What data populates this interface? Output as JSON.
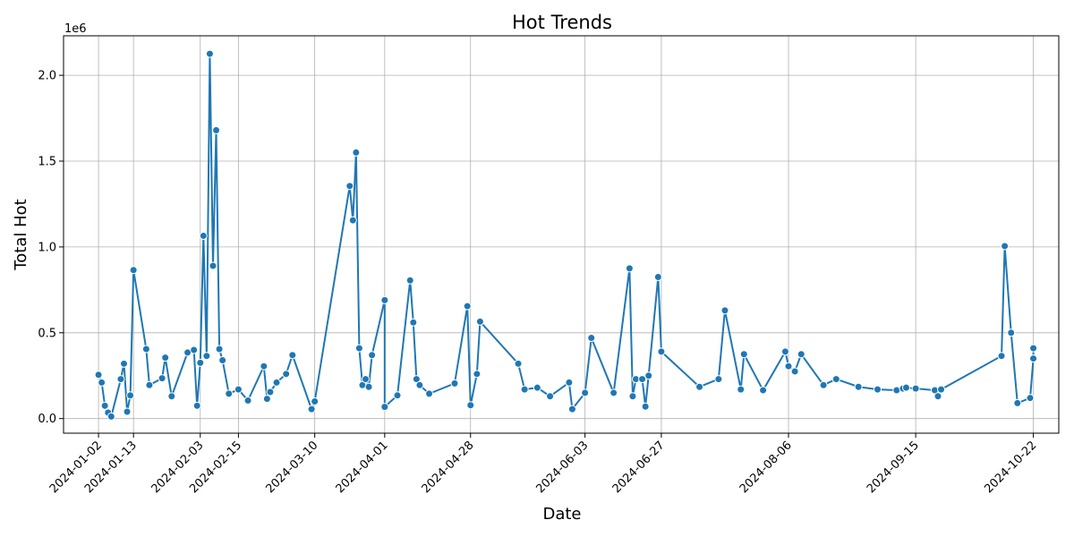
{
  "chart_data": {
    "type": "line",
    "title": "Hot Trends",
    "xlabel": "Date",
    "ylabel": "Total Hot",
    "offset_label": "1e6",
    "grid": true,
    "color": "#1f77b4",
    "xlim": [
      "2023-12-22",
      "2024-10-30"
    ],
    "ylim": [
      -85000,
      2230000
    ],
    "x_ticks": [
      "2024-01-02",
      "2024-01-13",
      "2024-02-03",
      "2024-02-15",
      "2024-03-10",
      "2024-04-01",
      "2024-04-28",
      "2024-06-03",
      "2024-06-27",
      "2024-08-06",
      "2024-09-15",
      "2024-10-22"
    ],
    "y_ticks": [
      0,
      500000,
      1000000,
      1500000,
      2000000
    ],
    "y_tick_labels": [
      "0.0",
      "0.5",
      "1.0",
      "1.5",
      "2.0"
    ],
    "series": [
      {
        "x": [
          "2024-01-02",
          "2024-01-03",
          "2024-01-04",
          "2024-01-05",
          "2024-01-06",
          "2024-01-09",
          "2024-01-10",
          "2024-01-11",
          "2024-01-12",
          "2024-01-13",
          "2024-01-17",
          "2024-01-18",
          "2024-01-22",
          "2024-01-23",
          "2024-01-25",
          "2024-01-30",
          "2024-02-01",
          "2024-02-02",
          "2024-02-03",
          "2024-02-04",
          "2024-02-05",
          "2024-02-06",
          "2024-02-07",
          "2024-02-08",
          "2024-02-09",
          "2024-02-10",
          "2024-02-12",
          "2024-02-15",
          "2024-02-18",
          "2024-02-23",
          "2024-02-24",
          "2024-02-25",
          "2024-02-27",
          "2024-03-01",
          "2024-03-03",
          "2024-03-09",
          "2024-03-10",
          "2024-03-21",
          "2024-03-22",
          "2024-03-23",
          "2024-03-24",
          "2024-03-25",
          "2024-03-26",
          "2024-03-27",
          "2024-03-28",
          "2024-04-01",
          "2024-04-01",
          "2024-04-05",
          "2024-04-09",
          "2024-04-10",
          "2024-04-11",
          "2024-04-12",
          "2024-04-15",
          "2024-04-23",
          "2024-04-27",
          "2024-04-28",
          "2024-04-30",
          "2024-05-01",
          "2024-05-13",
          "2024-05-15",
          "2024-05-19",
          "2024-05-23",
          "2024-05-29",
          "2024-05-30",
          "2024-06-03",
          "2024-06-05",
          "2024-06-12",
          "2024-06-17",
          "2024-06-18",
          "2024-06-19",
          "2024-06-21",
          "2024-06-22",
          "2024-06-23",
          "2024-06-26",
          "2024-06-27",
          "2024-07-09",
          "2024-07-15",
          "2024-07-17",
          "2024-07-22",
          "2024-07-23",
          "2024-07-29",
          "2024-08-05",
          "2024-08-06",
          "2024-08-08",
          "2024-08-10",
          "2024-08-17",
          "2024-08-21",
          "2024-08-28",
          "2024-09-03",
          "2024-09-09",
          "2024-09-11",
          "2024-09-12",
          "2024-09-15",
          "2024-09-21",
          "2024-09-22",
          "2024-09-23",
          "2024-10-12",
          "2024-10-13",
          "2024-10-15",
          "2024-10-17",
          "2024-10-21",
          "2024-10-22",
          "2024-10-22"
        ],
        "values": [
          255000,
          210000,
          75000,
          35000,
          12000,
          230000,
          320000,
          40000,
          135000,
          865000,
          405000,
          195000,
          235000,
          355000,
          130000,
          385000,
          400000,
          75000,
          325000,
          1065000,
          365000,
          2125000,
          890000,
          1680000,
          405000,
          340000,
          145000,
          170000,
          105000,
          305000,
          115000,
          155000,
          210000,
          260000,
          370000,
          55000,
          100000,
          1355000,
          1155000,
          1550000,
          410000,
          195000,
          230000,
          185000,
          370000,
          690000,
          68000,
          135000,
          805000,
          560000,
          230000,
          195000,
          145000,
          205000,
          655000,
          78000,
          260000,
          565000,
          320000,
          170000,
          180000,
          130000,
          210000,
          55000,
          150000,
          470000,
          150000,
          875000,
          130000,
          230000,
          230000,
          70000,
          250000,
          825000,
          390000,
          185000,
          230000,
          630000,
          170000,
          375000,
          165000,
          390000,
          305000,
          275000,
          375000,
          195000,
          230000,
          185000,
          170000,
          165000,
          175000,
          180000,
          175000,
          165000,
          130000,
          170000,
          365000,
          1005000,
          500000,
          90000,
          120000,
          350000,
          410000
        ]
      }
    ]
  }
}
